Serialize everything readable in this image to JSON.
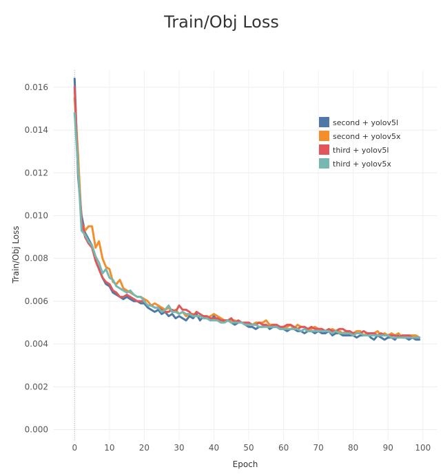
{
  "chart_data": {
    "type": "line",
    "title": "Train/Obj Loss",
    "xlabel": "Epoch",
    "ylabel": "Train/Obj Loss",
    "xlim": [
      -6,
      104
    ],
    "ylim": [
      -0.0005,
      0.0168
    ],
    "xticks": [
      0,
      10,
      20,
      30,
      40,
      50,
      60,
      70,
      80,
      90,
      100
    ],
    "yticks": [
      0.0,
      0.002,
      0.004,
      0.006,
      0.008,
      0.01,
      0.012,
      0.014,
      0.016
    ],
    "ytick_labels": [
      "0.000",
      "0.002",
      "0.004",
      "0.006",
      "0.008",
      "0.010",
      "0.012",
      "0.014",
      "0.016"
    ],
    "grid": true,
    "legend_position": "top-right",
    "series": [
      {
        "name": "second + yolov5l",
        "color": "#4e79a7",
        "x": [
          0,
          1,
          2,
          3,
          4,
          5,
          6,
          7,
          8,
          9,
          10,
          11,
          12,
          13,
          14,
          15,
          16,
          17,
          18,
          19,
          20,
          21,
          22,
          23,
          24,
          25,
          26,
          27,
          28,
          29,
          30,
          31,
          32,
          33,
          34,
          35,
          36,
          37,
          38,
          39,
          40,
          41,
          42,
          43,
          44,
          45,
          46,
          47,
          48,
          49,
          50,
          51,
          52,
          53,
          54,
          55,
          56,
          57,
          58,
          59,
          60,
          61,
          62,
          63,
          64,
          65,
          66,
          67,
          68,
          69,
          70,
          71,
          72,
          73,
          74,
          75,
          76,
          77,
          78,
          79,
          80,
          81,
          82,
          83,
          84,
          85,
          86,
          87,
          88,
          89,
          90,
          91,
          92,
          93,
          94,
          95,
          96,
          97,
          98,
          99
        ],
        "y": [
          0.0164,
          0.0118,
          0.01,
          0.0092,
          0.0089,
          0.0086,
          0.0079,
          0.0075,
          0.0071,
          0.0068,
          0.0067,
          0.0064,
          0.0063,
          0.0062,
          0.0061,
          0.0062,
          0.0061,
          0.006,
          0.006,
          0.0059,
          0.0059,
          0.0057,
          0.0056,
          0.0055,
          0.0056,
          0.0054,
          0.0055,
          0.0053,
          0.0054,
          0.0052,
          0.0053,
          0.0052,
          0.0051,
          0.0053,
          0.0052,
          0.0054,
          0.0051,
          0.0053,
          0.0052,
          0.0051,
          0.0053,
          0.0051,
          0.0052,
          0.005,
          0.0051,
          0.005,
          0.0049,
          0.005,
          0.005,
          0.0049,
          0.0048,
          0.0048,
          0.0047,
          0.0048,
          0.0048,
          0.0049,
          0.0047,
          0.0048,
          0.0048,
          0.0047,
          0.0047,
          0.0046,
          0.0047,
          0.0047,
          0.0046,
          0.0046,
          0.0045,
          0.0046,
          0.0046,
          0.0045,
          0.0046,
          0.0045,
          0.0045,
          0.0046,
          0.0044,
          0.0045,
          0.0045,
          0.0044,
          0.0044,
          0.0044,
          0.0044,
          0.0043,
          0.0044,
          0.0044,
          0.0045,
          0.0043,
          0.0042,
          0.0044,
          0.0043,
          0.0042,
          0.0043,
          0.0043,
          0.0042,
          0.0044,
          0.0043,
          0.0043,
          0.0042,
          0.0043,
          0.0042,
          0.0042
        ]
      },
      {
        "name": "second + yolov5x",
        "color": "#f28e2b",
        "x": [
          0,
          1,
          2,
          3,
          4,
          5,
          6,
          7,
          8,
          9,
          10,
          11,
          12,
          13,
          14,
          15,
          16,
          17,
          18,
          19,
          20,
          21,
          22,
          23,
          24,
          25,
          26,
          27,
          28,
          29,
          30,
          31,
          32,
          33,
          34,
          35,
          36,
          37,
          38,
          39,
          40,
          41,
          42,
          43,
          44,
          45,
          46,
          47,
          48,
          49,
          50,
          51,
          52,
          53,
          54,
          55,
          56,
          57,
          58,
          59,
          60,
          61,
          62,
          63,
          64,
          65,
          66,
          67,
          68,
          69,
          70,
          71,
          72,
          73,
          74,
          75,
          76,
          77,
          78,
          79,
          80,
          81,
          82,
          83,
          84,
          85,
          86,
          87,
          88,
          89,
          90,
          91,
          92,
          93,
          94,
          95,
          96,
          97,
          98,
          99
        ],
        "y": [
          0.0155,
          0.0128,
          0.0097,
          0.0093,
          0.0095,
          0.0095,
          0.0085,
          0.0088,
          0.008,
          0.0076,
          0.0075,
          0.0069,
          0.0068,
          0.007,
          0.0066,
          0.0065,
          0.0064,
          0.0063,
          0.0062,
          0.0062,
          0.0061,
          0.006,
          0.0058,
          0.0059,
          0.0058,
          0.0057,
          0.0056,
          0.0057,
          0.0055,
          0.0056,
          0.0054,
          0.0055,
          0.0053,
          0.0054,
          0.0054,
          0.0053,
          0.0053,
          0.0052,
          0.0052,
          0.0053,
          0.0054,
          0.0053,
          0.0052,
          0.0051,
          0.0051,
          0.0051,
          0.0051,
          0.005,
          0.005,
          0.005,
          0.005,
          0.0049,
          0.005,
          0.005,
          0.005,
          0.0051,
          0.0049,
          0.0049,
          0.0048,
          0.0048,
          0.0048,
          0.0048,
          0.0049,
          0.0047,
          0.0049,
          0.0048,
          0.0048,
          0.0047,
          0.0047,
          0.0048,
          0.0047,
          0.0047,
          0.0046,
          0.0046,
          0.0047,
          0.0046,
          0.0046,
          0.0045,
          0.0046,
          0.0045,
          0.0045,
          0.0046,
          0.0046,
          0.0044,
          0.0045,
          0.0045,
          0.0045,
          0.0046,
          0.0044,
          0.0045,
          0.0044,
          0.0045,
          0.0044,
          0.0045,
          0.0043,
          0.0043,
          0.0044,
          0.0044,
          0.0044,
          0.0043
        ]
      },
      {
        "name": "third + yolov5l",
        "color": "#e15759",
        "x": [
          0,
          1,
          2,
          3,
          4,
          5,
          6,
          7,
          8,
          9,
          10,
          11,
          12,
          13,
          14,
          15,
          16,
          17,
          18,
          19,
          20,
          21,
          22,
          23,
          24,
          25,
          26,
          27,
          28,
          29,
          30,
          31,
          32,
          33,
          34,
          35,
          36,
          37,
          38,
          39,
          40,
          41,
          42,
          43,
          44,
          45,
          46,
          47,
          48,
          49,
          50,
          51,
          52,
          53,
          54,
          55,
          56,
          57,
          58,
          59,
          60,
          61,
          62,
          63,
          64,
          65,
          66,
          67,
          68,
          69,
          70,
          71,
          72,
          73,
          74,
          75,
          76,
          77,
          78,
          79,
          80,
          81,
          82,
          83,
          84,
          85,
          86,
          87,
          88,
          89,
          90,
          91,
          92,
          93,
          94,
          95,
          96,
          97,
          98,
          99
        ],
        "y": [
          0.016,
          0.012,
          0.0098,
          0.009,
          0.0087,
          0.0085,
          0.0079,
          0.0075,
          0.0071,
          0.0069,
          0.0068,
          0.0065,
          0.0064,
          0.0062,
          0.0062,
          0.0063,
          0.0062,
          0.0061,
          0.006,
          0.006,
          0.006,
          0.0058,
          0.0058,
          0.0057,
          0.0057,
          0.0056,
          0.0055,
          0.0055,
          0.0056,
          0.0055,
          0.0058,
          0.0056,
          0.0056,
          0.0055,
          0.0053,
          0.0055,
          0.0054,
          0.0053,
          0.0053,
          0.0052,
          0.0052,
          0.0052,
          0.0051,
          0.0051,
          0.0051,
          0.0052,
          0.005,
          0.0051,
          0.005,
          0.005,
          0.005,
          0.0049,
          0.0049,
          0.005,
          0.0049,
          0.0049,
          0.0048,
          0.0049,
          0.0049,
          0.0048,
          0.0048,
          0.0049,
          0.0049,
          0.0048,
          0.0047,
          0.0048,
          0.0048,
          0.0047,
          0.0048,
          0.0047,
          0.0047,
          0.0047,
          0.0046,
          0.0047,
          0.0046,
          0.0046,
          0.0047,
          0.0047,
          0.0046,
          0.0046,
          0.0045,
          0.0045,
          0.0045,
          0.0046,
          0.0045,
          0.0045,
          0.0045,
          0.0044,
          0.0045,
          0.0044,
          0.0044,
          0.0044,
          0.0044,
          0.0043,
          0.0044,
          0.0044,
          0.0044,
          0.0043,
          0.0043,
          0.0043
        ]
      },
      {
        "name": "third + yolov5x",
        "color": "#76b7b2",
        "x": [
          0,
          1,
          2,
          3,
          4,
          5,
          6,
          7,
          8,
          9,
          10,
          11,
          12,
          13,
          14,
          15,
          16,
          17,
          18,
          19,
          20,
          21,
          22,
          23,
          24,
          25,
          26,
          27,
          28,
          29,
          30,
          31,
          32,
          33,
          34,
          35,
          36,
          37,
          38,
          39,
          40,
          41,
          42,
          43,
          44,
          45,
          46,
          47,
          48,
          49,
          50,
          51,
          52,
          53,
          54,
          55,
          56,
          57,
          58,
          59,
          60,
          61,
          62,
          63,
          64,
          65,
          66,
          67,
          68,
          69,
          70,
          71,
          72,
          73,
          74,
          75,
          76,
          77,
          78,
          79,
          80,
          81,
          82,
          83,
          84,
          85,
          86,
          87,
          88,
          89,
          90,
          91,
          92,
          93,
          94,
          95,
          96,
          97,
          98,
          99
        ],
        "y": [
          0.0148,
          0.0122,
          0.0093,
          0.0091,
          0.0088,
          0.0086,
          0.0081,
          0.0078,
          0.0073,
          0.0075,
          0.0071,
          0.007,
          0.0067,
          0.0066,
          0.0065,
          0.0064,
          0.0065,
          0.0063,
          0.0062,
          0.0062,
          0.006,
          0.0058,
          0.0058,
          0.0057,
          0.0057,
          0.0055,
          0.0056,
          0.0058,
          0.0055,
          0.0055,
          0.0054,
          0.0055,
          0.0054,
          0.0054,
          0.0053,
          0.0053,
          0.0053,
          0.0052,
          0.0052,
          0.0051,
          0.0051,
          0.0051,
          0.005,
          0.005,
          0.0051,
          0.005,
          0.005,
          0.005,
          0.005,
          0.0049,
          0.0049,
          0.0049,
          0.0049,
          0.0048,
          0.0048,
          0.0048,
          0.0048,
          0.0048,
          0.0048,
          0.0047,
          0.0047,
          0.0047,
          0.0047,
          0.0047,
          0.0047,
          0.0046,
          0.0047,
          0.0046,
          0.0046,
          0.0046,
          0.0046,
          0.0046,
          0.0046,
          0.0046,
          0.0045,
          0.0046,
          0.0045,
          0.0045,
          0.0045,
          0.0045,
          0.0044,
          0.0045,
          0.0045,
          0.0044,
          0.0044,
          0.0044,
          0.0044,
          0.0044,
          0.0044,
          0.0044,
          0.0044,
          0.0043,
          0.0043,
          0.0043,
          0.0043,
          0.0043,
          0.0043,
          0.0043,
          0.0043,
          0.0043
        ]
      }
    ]
  }
}
